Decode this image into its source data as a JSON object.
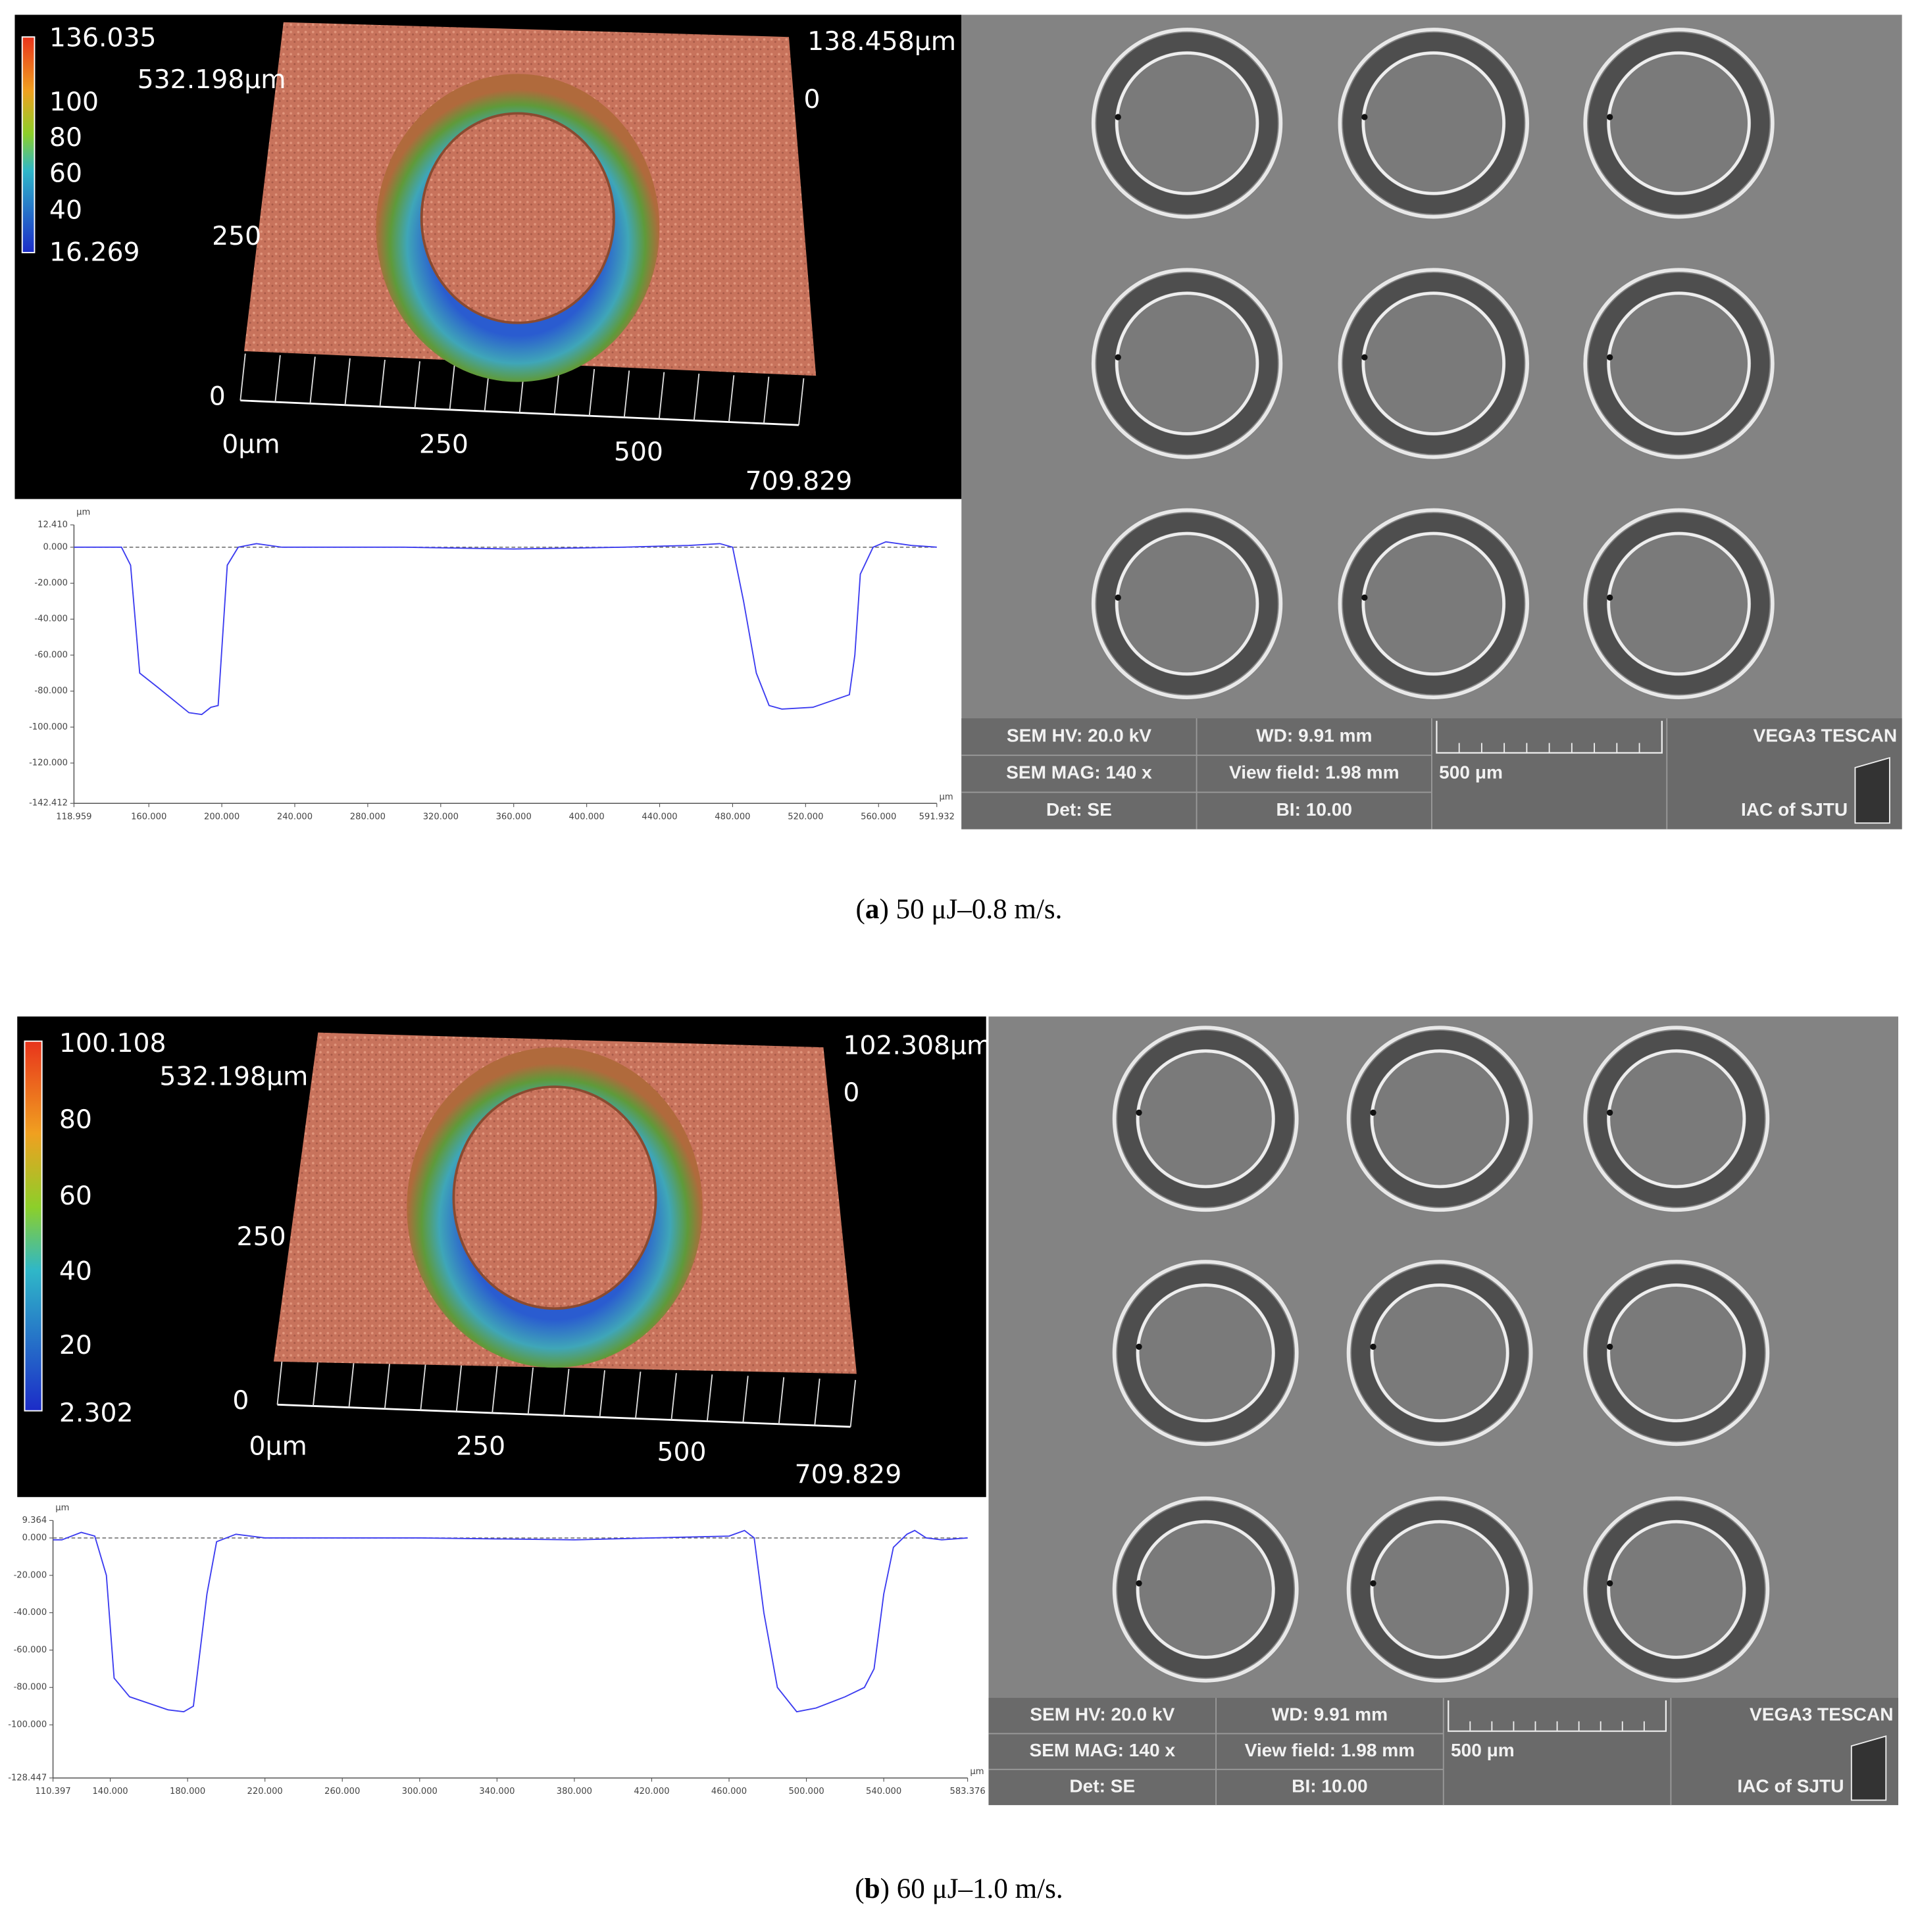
{
  "panels": [
    {
      "view3d": {
        "colorbar": [
          "136.035",
          "100",
          "80",
          "60",
          "40",
          "16.269"
        ],
        "axis_labels": [
          "532.198μm",
          "138.458μm",
          "0",
          "250",
          "0",
          "0μm",
          "250",
          "500",
          "709.829"
        ]
      },
      "sem": {
        "info": [
          "SEM HV: 20.0 kV",
          "WD: 9.91 mm",
          "VEGA3 TESCAN",
          "SEM MAG: 140 x",
          "View field: 1.98 mm",
          "500 μm",
          "Det: SE",
          "BI: 10.00",
          "IAC of SJTU"
        ]
      },
      "caption": {
        "prefix": "(",
        "label": "a",
        "text": ") 50 μJ–0.8 m/s."
      }
    },
    {
      "view3d": {
        "colorbar": [
          "100.108",
          "80",
          "60",
          "40",
          "20",
          "2.302"
        ],
        "axis_labels": [
          "532.198μm",
          "102.308μm",
          "0",
          "250",
          "0",
          "0μm",
          "250",
          "500",
          "709.829"
        ]
      },
      "sem": {
        "info": [
          "SEM HV: 20.0 kV",
          "WD: 9.91 mm",
          "VEGA3 TESCAN",
          "SEM MAG: 140 x",
          "View field: 1.98 mm",
          "500 μm",
          "Det: SE",
          "BI: 10.00",
          "IAC of SJTU"
        ]
      },
      "caption": {
        "prefix": "(",
        "label": "b",
        "text": ") 60 μJ–1.0 m/s."
      }
    }
  ],
  "chart_data": [
    {
      "type": "line",
      "x_label": "μm",
      "y_label": "μm",
      "x": [
        118.959,
        145,
        150,
        155,
        165,
        182,
        189,
        194,
        198,
        203,
        209,
        219,
        233,
        300,
        360,
        420,
        456,
        473,
        480,
        486,
        493,
        500,
        507,
        524,
        544,
        547,
        550,
        557,
        564,
        578,
        591.932
      ],
      "series": [
        {
          "color": "#3c3cf0",
          "values": [
            0,
            0,
            -10,
            -70,
            -78,
            -92,
            -93,
            -89,
            -88,
            -10,
            0,
            2,
            0,
            0,
            -1,
            0,
            1,
            2,
            0,
            -30,
            -70,
            -88,
            -90,
            -89,
            -82,
            -60,
            -15,
            0,
            3,
            1,
            0
          ]
        }
      ],
      "xlim": [
        118.959,
        591.932
      ],
      "ylim": [
        -142.412,
        12.41
      ],
      "xticks": [
        {
          "value": 118.959,
          "label": "118.959"
        },
        {
          "value": 160,
          "label": "160.000"
        },
        {
          "value": 200,
          "label": "200.000"
        },
        {
          "value": 240,
          "label": "240.000"
        },
        {
          "value": 280,
          "label": "280.000"
        },
        {
          "value": 320,
          "label": "320.000"
        },
        {
          "value": 360,
          "label": "360.000"
        },
        {
          "value": 400,
          "label": "400.000"
        },
        {
          "value": 440,
          "label": "440.000"
        },
        {
          "value": 480,
          "label": "480.000"
        },
        {
          "value": 520,
          "label": "520.000"
        },
        {
          "value": 560,
          "label": "560.000"
        },
        {
          "value": 591.932,
          "label": "591.932"
        }
      ],
      "yticks": [
        {
          "value": 12.41,
          "label": "12.410"
        },
        {
          "value": 0,
          "label": "0.000"
        },
        {
          "value": -20,
          "label": "-20.000"
        },
        {
          "value": -40,
          "label": "-40.000"
        },
        {
          "value": -60,
          "label": "-60.000"
        },
        {
          "value": -80,
          "label": "-80.000"
        },
        {
          "value": -100,
          "label": "-100.000"
        },
        {
          "value": -120,
          "label": "-120.000"
        },
        {
          "value": -142.412,
          "label": "-142.412"
        }
      ]
    },
    {
      "type": "line",
      "x_label": "μm",
      "y_label": "μm",
      "x": [
        110.397,
        115,
        125,
        132,
        138,
        142,
        150,
        170,
        178,
        183,
        190,
        195,
        205,
        220,
        300,
        380,
        460,
        468,
        473,
        478,
        485,
        495,
        505,
        520,
        530,
        535,
        540,
        545,
        552,
        556,
        562,
        570,
        583.376
      ],
      "series": [
        {
          "color": "#3c3cf0",
          "values": [
            -1,
            -1,
            3,
            1,
            -20,
            -75,
            -85,
            -92,
            -93,
            -90,
            -30,
            -2,
            2,
            0,
            0,
            -1,
            1,
            4,
            0,
            -40,
            -80,
            -93,
            -91,
            -85,
            -80,
            -70,
            -30,
            -5,
            2,
            4,
            0,
            -1,
            0
          ]
        }
      ],
      "xlim": [
        110.397,
        583.376
      ],
      "ylim": [
        -128.447,
        9.364
      ],
      "xticks": [
        {
          "value": 110.397,
          "label": "110.397"
        },
        {
          "value": 140,
          "label": "140.000"
        },
        {
          "value": 180,
          "label": "180.000"
        },
        {
          "value": 220,
          "label": "220.000"
        },
        {
          "value": 260,
          "label": "260.000"
        },
        {
          "value": 300,
          "label": "300.000"
        },
        {
          "value": 340,
          "label": "340.000"
        },
        {
          "value": 380,
          "label": "380.000"
        },
        {
          "value": 420,
          "label": "420.000"
        },
        {
          "value": 460,
          "label": "460.000"
        },
        {
          "value": 500,
          "label": "500.000"
        },
        {
          "value": 540,
          "label": "540.000"
        },
        {
          "value": 583.376,
          "label": "583.376"
        }
      ],
      "yticks": [
        {
          "value": 9.364,
          "label": "9.364"
        },
        {
          "value": 0,
          "label": "0.000"
        },
        {
          "value": -20,
          "label": "-20.000"
        },
        {
          "value": -40,
          "label": "-40.000"
        },
        {
          "value": -60,
          "label": "-60.000"
        },
        {
          "value": -80,
          "label": "-80.000"
        },
        {
          "value": -100,
          "label": "-100.000"
        },
        {
          "value": -128.447,
          "label": "-128.447"
        }
      ]
    }
  ]
}
